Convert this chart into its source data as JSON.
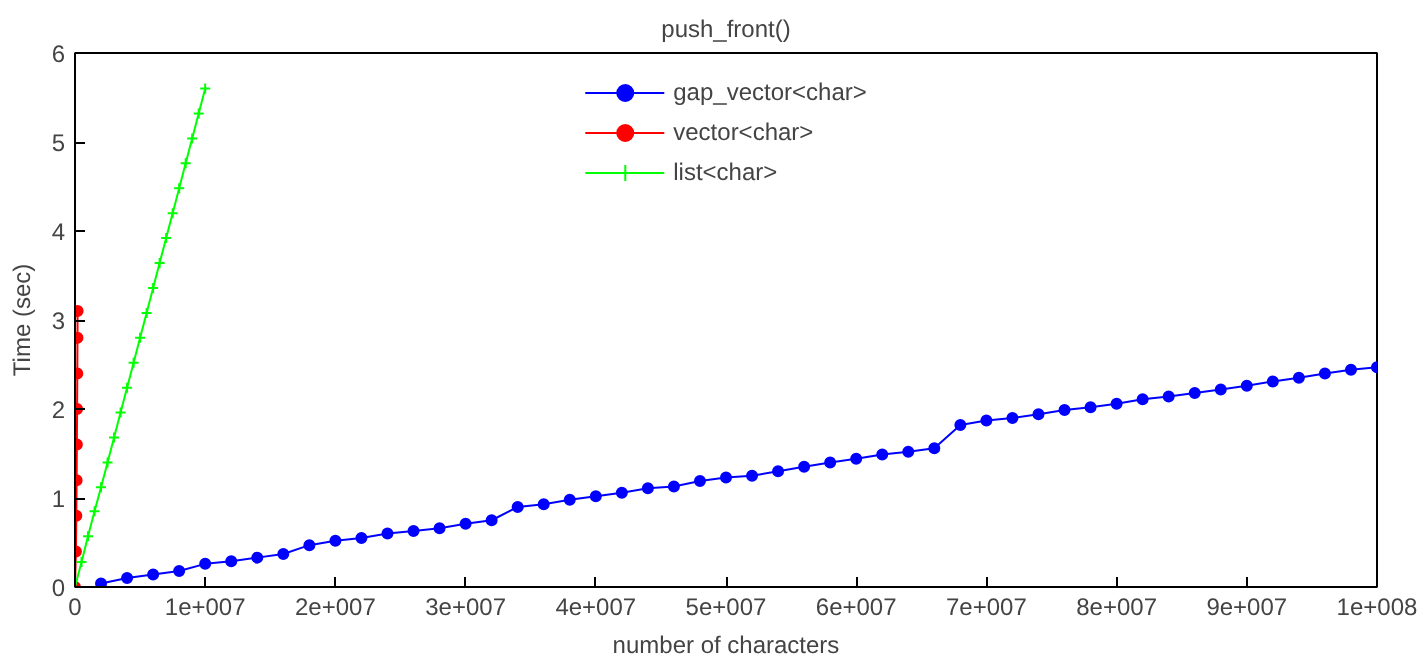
{
  "chart_data": {
    "type": "line",
    "title": "push_front()",
    "xlabel": "number of characters",
    "ylabel": "Time (sec)",
    "xlim": [
      0,
      100000000
    ],
    "ylim": [
      0,
      6
    ],
    "xticks": [
      0,
      {
        "value": 10000000,
        "label": "1e+007"
      },
      {
        "value": 20000000,
        "label": "2e+007"
      },
      {
        "value": 30000000,
        "label": "3e+007"
      },
      {
        "value": 40000000,
        "label": "4e+007"
      },
      {
        "value": 50000000,
        "label": "5e+007"
      },
      {
        "value": 60000000,
        "label": "6e+007"
      },
      {
        "value": 70000000,
        "label": "7e+007"
      },
      {
        "value": 80000000,
        "label": "8e+007"
      },
      {
        "value": 90000000,
        "label": "9e+007"
      },
      {
        "value": 100000000,
        "label": "1e+008"
      }
    ],
    "yticks": [
      0,
      1,
      2,
      3,
      4,
      5,
      6
    ],
    "grid": false,
    "legend": "top",
    "series": [
      {
        "name": "gap_vector<char>",
        "color": "#0000ff",
        "marker": "circle",
        "x": [
          2000000,
          4000000,
          6000000,
          8000000,
          10000000,
          12000000,
          14000000,
          16000000,
          18000000,
          20000000,
          22000000,
          24000000,
          26000000,
          28000000,
          30000000,
          32000000,
          34000000,
          36000000,
          38000000,
          40000000,
          42000000,
          44000000,
          46000000,
          48000000,
          50000000,
          52000000,
          54000000,
          56000000,
          58000000,
          60000000,
          62000000,
          64000000,
          66000000,
          68000000,
          70000000,
          72000000,
          74000000,
          76000000,
          78000000,
          80000000,
          82000000,
          84000000,
          86000000,
          88000000,
          90000000,
          92000000,
          94000000,
          96000000,
          98000000,
          100000000
        ],
        "values": [
          0.04,
          0.1,
          0.14,
          0.18,
          0.26,
          0.29,
          0.33,
          0.37,
          0.47,
          0.52,
          0.55,
          0.6,
          0.63,
          0.66,
          0.71,
          0.75,
          0.9,
          0.93,
          0.98,
          1.02,
          1.06,
          1.11,
          1.13,
          1.19,
          1.23,
          1.25,
          1.3,
          1.35,
          1.4,
          1.44,
          1.49,
          1.52,
          1.56,
          1.82,
          1.87,
          1.9,
          1.94,
          1.99,
          2.02,
          2.06,
          2.11,
          2.14,
          2.18,
          2.22,
          2.26,
          2.31,
          2.35,
          2.4,
          2.44,
          2.47
        ]
      },
      {
        "name": "vector<char>",
        "color": "#ff0000",
        "marker": "circle",
        "x": [
          0,
          72000,
          102000,
          124000,
          144000,
          161000,
          176000,
          190000,
          200000
        ],
        "values": [
          0,
          0.4,
          0.8,
          1.2,
          1.6,
          2.0,
          2.4,
          2.8,
          3.1
        ]
      },
      {
        "name": "list<char>",
        "color": "#00ff00",
        "marker": "cross",
        "x": [
          0,
          500000,
          1000000,
          1500000,
          2000000,
          2500000,
          3000000,
          3500000,
          4000000,
          4500000,
          5000000,
          5500000,
          6000000,
          6500000,
          7000000,
          7500000,
          8000000,
          8500000,
          9000000,
          9500000,
          10000000
        ],
        "values": [
          0,
          0.28,
          0.57,
          0.85,
          1.12,
          1.4,
          1.68,
          1.96,
          2.24,
          2.52,
          2.8,
          3.08,
          3.36,
          3.64,
          3.92,
          4.2,
          4.48,
          4.76,
          5.04,
          5.32,
          5.6
        ]
      }
    ]
  }
}
